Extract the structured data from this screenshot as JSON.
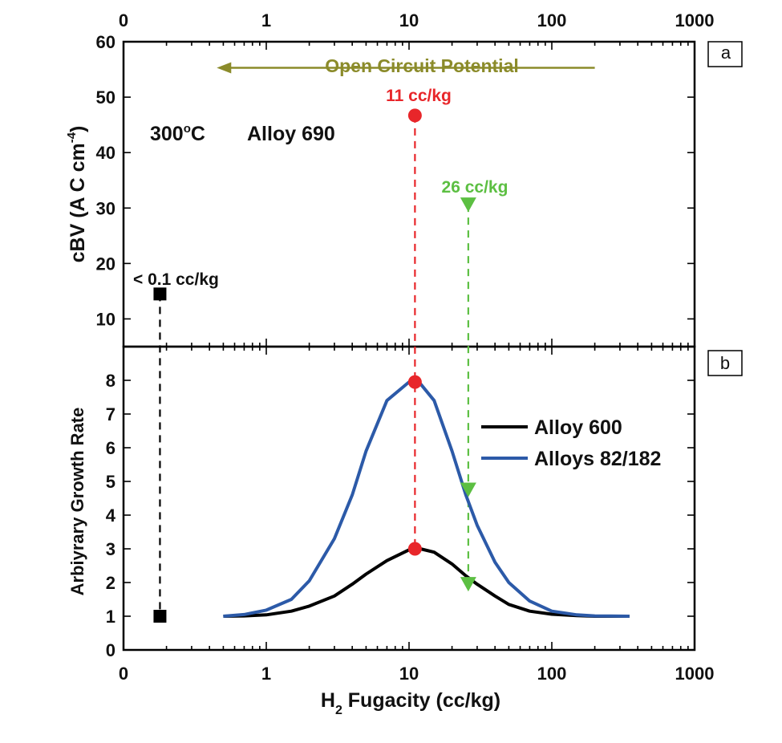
{
  "chart_data": {
    "type": "line",
    "x_axis": {
      "title_main": "H",
      "title_sub": "2",
      "title_rest": " Fugacity (cc/kg)",
      "scale": "log",
      "range": [
        0.1,
        1000
      ],
      "tick_values": [
        0.1,
        1,
        10,
        100,
        1000
      ],
      "tick_labels": [
        "0",
        "1",
        "10",
        "100",
        "1000"
      ]
    },
    "panel_a": {
      "panel_label": "a",
      "ylabel_main": "cBV (A C cm",
      "ylabel_sup": "-4",
      "ylabel_close": ")",
      "ylim": [
        5,
        60
      ],
      "yticks": [
        10,
        20,
        30,
        40,
        50,
        60
      ],
      "ytick_labels": [
        "10",
        "20",
        "30",
        "40",
        "50",
        "60"
      ],
      "annotation_temp": "300",
      "annotation_deg": "o",
      "annotation_c": "C",
      "annotation_alloy": "Alloy 690",
      "ocp_label": "Open Circuit Potential",
      "ocp_color": "#8b8b2a",
      "ocp_arrow_from_x": 200,
      "ocp_arrow_to_x": 0.45,
      "ocp_y": 55.3,
      "points": [
        {
          "label": "< 0.1 cc/kg",
          "x": 0.18,
          "y": 14.5,
          "marker": "square",
          "color": "#000000"
        },
        {
          "label": "11 cc/kg",
          "x": 11,
          "y": 46.7,
          "marker": "circle",
          "color": "#e8262a"
        },
        {
          "label": "26 cc/kg",
          "x": 26,
          "y": 30.6,
          "marker": "triangle-down",
          "color": "#5cbf42"
        }
      ]
    },
    "panel_b": {
      "panel_label": "b",
      "ylabel": "Arbiyrary Growth Rate",
      "ylim": [
        0,
        9
      ],
      "yticks": [
        0,
        1,
        2,
        3,
        4,
        5,
        6,
        7,
        8
      ],
      "ytick_labels": [
        "0",
        "1",
        "2",
        "3",
        "4",
        "5",
        "6",
        "7",
        "8"
      ],
      "series": [
        {
          "name": "Alloy 600",
          "color": "#000000",
          "x": [
            0.5,
            0.7,
            1,
            1.5,
            2,
            3,
            4,
            5,
            7,
            10,
            12,
            15,
            20,
            25,
            30,
            40,
            50,
            70,
            100,
            150,
            200,
            350
          ],
          "y": [
            1.0,
            1.01,
            1.04,
            1.15,
            1.3,
            1.6,
            1.95,
            2.25,
            2.65,
            2.97,
            3.0,
            2.9,
            2.55,
            2.2,
            1.95,
            1.6,
            1.35,
            1.15,
            1.06,
            1.02,
            1.0,
            1.0
          ]
        },
        {
          "name": "Alloys 82/182",
          "color": "#2c5aa8",
          "x": [
            0.5,
            0.7,
            1,
            1.5,
            2,
            3,
            4,
            5,
            7,
            10,
            12,
            15,
            20,
            25,
            30,
            40,
            50,
            70,
            100,
            150,
            200,
            350
          ],
          "y": [
            1.0,
            1.05,
            1.18,
            1.5,
            2.05,
            3.3,
            4.6,
            5.9,
            7.4,
            7.95,
            7.9,
            7.4,
            5.9,
            4.6,
            3.7,
            2.6,
            2.0,
            1.45,
            1.15,
            1.04,
            1.01,
            1.0
          ]
        }
      ],
      "points": [
        {
          "x": 0.18,
          "y": 1.0,
          "marker": "square",
          "color": "#000000"
        },
        {
          "x": 11,
          "y": 7.95,
          "marker": "circle",
          "color": "#e8262a"
        },
        {
          "x": 11,
          "y": 3.0,
          "marker": "circle",
          "color": "#e8262a"
        },
        {
          "x": 26,
          "y": 4.75,
          "marker": "triangle-down",
          "color": "#5cbf42"
        },
        {
          "x": 26,
          "y": 1.95,
          "marker": "triangle-down",
          "color": "#5cbf42"
        }
      ]
    },
    "dashed_drops": [
      {
        "x": 0.18,
        "from_y_a": 14.5,
        "to_y_b": 1.0,
        "color": "#000000"
      },
      {
        "x": 11,
        "from_y_a": 46.7,
        "to_y_b": 3.0,
        "color": "#e8262a"
      },
      {
        "x": 26,
        "from_y_a": 30.6,
        "to_y_b": 1.95,
        "color": "#5cbf42"
      }
    ]
  }
}
